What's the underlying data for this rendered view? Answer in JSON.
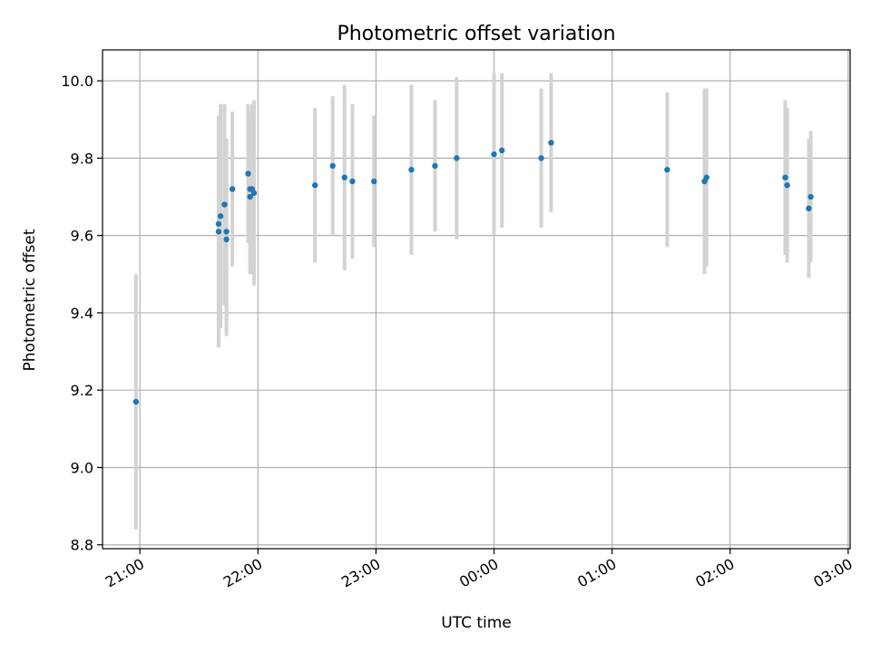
{
  "chart_data": {
    "type": "scatter",
    "title": "Photometric offset variation",
    "xlabel": "UTC time",
    "ylabel": "Photometric offset",
    "x_axis_type": "time",
    "x_tick_labels": [
      "21:00",
      "22:00",
      "23:00",
      "00:00",
      "01:00",
      "02:00",
      "03:00"
    ],
    "xlim": [
      "20:41",
      "03:00"
    ],
    "ylim": [
      8.79,
      10.08
    ],
    "y_ticks": [
      8.8,
      9.0,
      9.2,
      9.4,
      9.6,
      9.8,
      10.0
    ],
    "y_tick_labels": [
      "8.8",
      "9.0",
      "9.2",
      "9.4",
      "9.6",
      "9.8",
      "10.0"
    ],
    "grid": true,
    "marker_color": "#1f77b4",
    "error_bar_color": "#d3d3d3",
    "points": [
      {
        "t": "20:58",
        "y": 9.17,
        "err": 0.33
      },
      {
        "t": "21:40",
        "y": 9.61,
        "err": 0.3
      },
      {
        "t": "21:40",
        "y": 9.63,
        "err": 0.28
      },
      {
        "t": "21:41",
        "y": 9.65,
        "err": 0.29
      },
      {
        "t": "21:43",
        "y": 9.68,
        "err": 0.26
      },
      {
        "t": "21:44",
        "y": 9.59,
        "err": 0.25
      },
      {
        "t": "21:44",
        "y": 9.61,
        "err": 0.24
      },
      {
        "t": "21:47",
        "y": 9.72,
        "err": 0.2
      },
      {
        "t": "21:55",
        "y": 9.76,
        "err": 0.18
      },
      {
        "t": "21:56",
        "y": 9.72,
        "err": 0.2
      },
      {
        "t": "21:56",
        "y": 9.7,
        "err": 0.2
      },
      {
        "t": "21:57",
        "y": 9.72,
        "err": 0.22
      },
      {
        "t": "21:58",
        "y": 9.71,
        "err": 0.24
      },
      {
        "t": "22:29",
        "y": 9.73,
        "err": 0.2
      },
      {
        "t": "22:38",
        "y": 9.78,
        "err": 0.18
      },
      {
        "t": "22:44",
        "y": 9.75,
        "err": 0.24
      },
      {
        "t": "22:48",
        "y": 9.74,
        "err": 0.2
      },
      {
        "t": "22:59",
        "y": 9.74,
        "err": 0.17
      },
      {
        "t": "23:18",
        "y": 9.77,
        "err": 0.22
      },
      {
        "t": "23:30",
        "y": 9.78,
        "err": 0.17
      },
      {
        "t": "23:41",
        "y": 9.8,
        "err": 0.21
      },
      {
        "t": "00:00",
        "y": 9.81,
        "err": 0.21
      },
      {
        "t": "00:04",
        "y": 9.82,
        "err": 0.2
      },
      {
        "t": "00:24",
        "y": 9.8,
        "err": 0.18
      },
      {
        "t": "00:29",
        "y": 9.84,
        "err": 0.18
      },
      {
        "t": "01:28",
        "y": 9.77,
        "err": 0.2
      },
      {
        "t": "01:47",
        "y": 9.74,
        "err": 0.24
      },
      {
        "t": "01:48",
        "y": 9.75,
        "err": 0.23
      },
      {
        "t": "02:28",
        "y": 9.75,
        "err": 0.2
      },
      {
        "t": "02:29",
        "y": 9.73,
        "err": 0.2
      },
      {
        "t": "02:40",
        "y": 9.67,
        "err": 0.18
      },
      {
        "t": "02:41",
        "y": 9.7,
        "err": 0.17
      }
    ]
  }
}
